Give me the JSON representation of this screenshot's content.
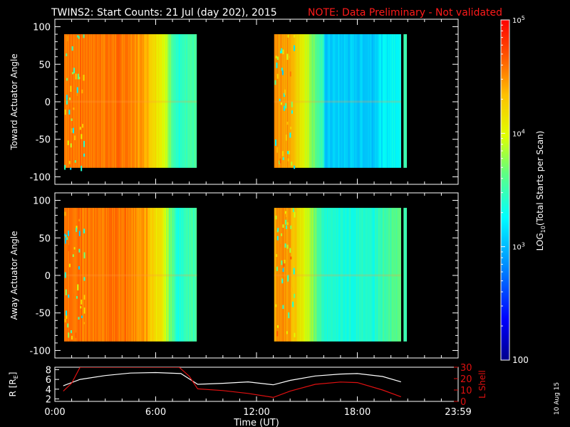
{
  "title": {
    "main": "TWINS2: Start Counts: 21 Jul (day 202), 2015",
    "note": "NOTE: Data Preliminary - Not validated"
  },
  "date_stamp": "10 Aug 15",
  "colors": {
    "background": "#000000",
    "axes": "#ffffff",
    "note": "#ff1a1a",
    "lshell": "#e01010",
    "radius": "#ffffff"
  },
  "chart_data": [
    {
      "type": "heatmap",
      "name": "toward",
      "ylabel": "Toward Actuator Angle",
      "ylim": [
        -110,
        110
      ],
      "yticks": [
        100,
        50,
        0,
        -50,
        -100
      ],
      "xlim": [
        0,
        24
      ],
      "angle_range": [
        -88,
        90
      ],
      "segments": [
        {
          "start": 0.55,
          "end": 8.45,
          "profile": "a"
        },
        {
          "start": 13.05,
          "end": 20.6,
          "profile": "b"
        }
      ],
      "gap_end_stripe": {
        "start": 20.75,
        "end": 20.95
      }
    },
    {
      "type": "heatmap",
      "name": "away",
      "ylabel": "Away Actuator Angle",
      "ylim": [
        -110,
        110
      ],
      "yticks": [
        100,
        50,
        0,
        -50,
        -100
      ],
      "xlim": [
        0,
        24
      ],
      "angle_range": [
        -88,
        90
      ],
      "segments": [
        {
          "start": 0.55,
          "end": 8.45,
          "profile": "a"
        },
        {
          "start": 13.05,
          "end": 20.6,
          "profile": "b"
        }
      ],
      "gap_end_stripe": {
        "start": 20.75,
        "end": 20.95
      }
    },
    {
      "type": "line",
      "name": "orbit",
      "xlabel": "Time (UT)",
      "ylabel_left": "R [R",
      "ylabel_left_sub": "E",
      "ylabel_left_end": "]",
      "ylabel_right": "L Shell",
      "xlim": [
        0,
        24
      ],
      "xticks": [
        {
          "value": 0,
          "label": "0:00"
        },
        {
          "value": 6,
          "label": "6:00"
        },
        {
          "value": 12,
          "label": "12:00"
        },
        {
          "value": 18,
          "label": "18:00"
        },
        {
          "value": 24,
          "label": "23:59"
        }
      ],
      "ylim_left": [
        1.5,
        8.5
      ],
      "yticks_left": [
        8,
        6,
        4,
        2
      ],
      "ylim_right": [
        0,
        30
      ],
      "yticks_right": [
        30,
        20,
        10,
        0
      ],
      "series": [
        {
          "axis": "left",
          "color": "#ffffff",
          "x": [
            0.5,
            1.5,
            3,
            4.5,
            6,
            7.5,
            8.5,
            10,
            11.5,
            13,
            14,
            15.5,
            17,
            18,
            19.5,
            20.6
          ],
          "y": [
            4.7,
            6.0,
            6.8,
            7.3,
            7.4,
            7.2,
            5.0,
            5.2,
            5.5,
            4.9,
            5.8,
            6.7,
            7.1,
            7.2,
            6.6,
            5.5
          ]
        },
        {
          "axis": "right",
          "color": "#e01010",
          "x": [
            0.5,
            1.0,
            1.5,
            7.4,
            8.0,
            8.5,
            10,
            11.5,
            13,
            14,
            15.5,
            17,
            18,
            19.5,
            20.6
          ],
          "y": [
            9,
            16,
            30,
            30,
            22,
            11,
            9.5,
            7,
            3.5,
            9,
            15,
            17,
            16.5,
            10,
            4
          ]
        }
      ]
    }
  ],
  "colorbar": {
    "label": "LOG",
    "label_sub": "10",
    "label_end": "(Total Starts per Scan)",
    "scale": "log",
    "range": [
      100,
      100000
    ],
    "ticks": [
      {
        "value": 100000,
        "base": "10",
        "exp": "5"
      },
      {
        "value": 10000,
        "base": "10",
        "exp": "4"
      },
      {
        "value": 1000,
        "base": "10",
        "exp": "3"
      },
      {
        "value": 100,
        "label": "100"
      }
    ],
    "tick_100": "100"
  }
}
